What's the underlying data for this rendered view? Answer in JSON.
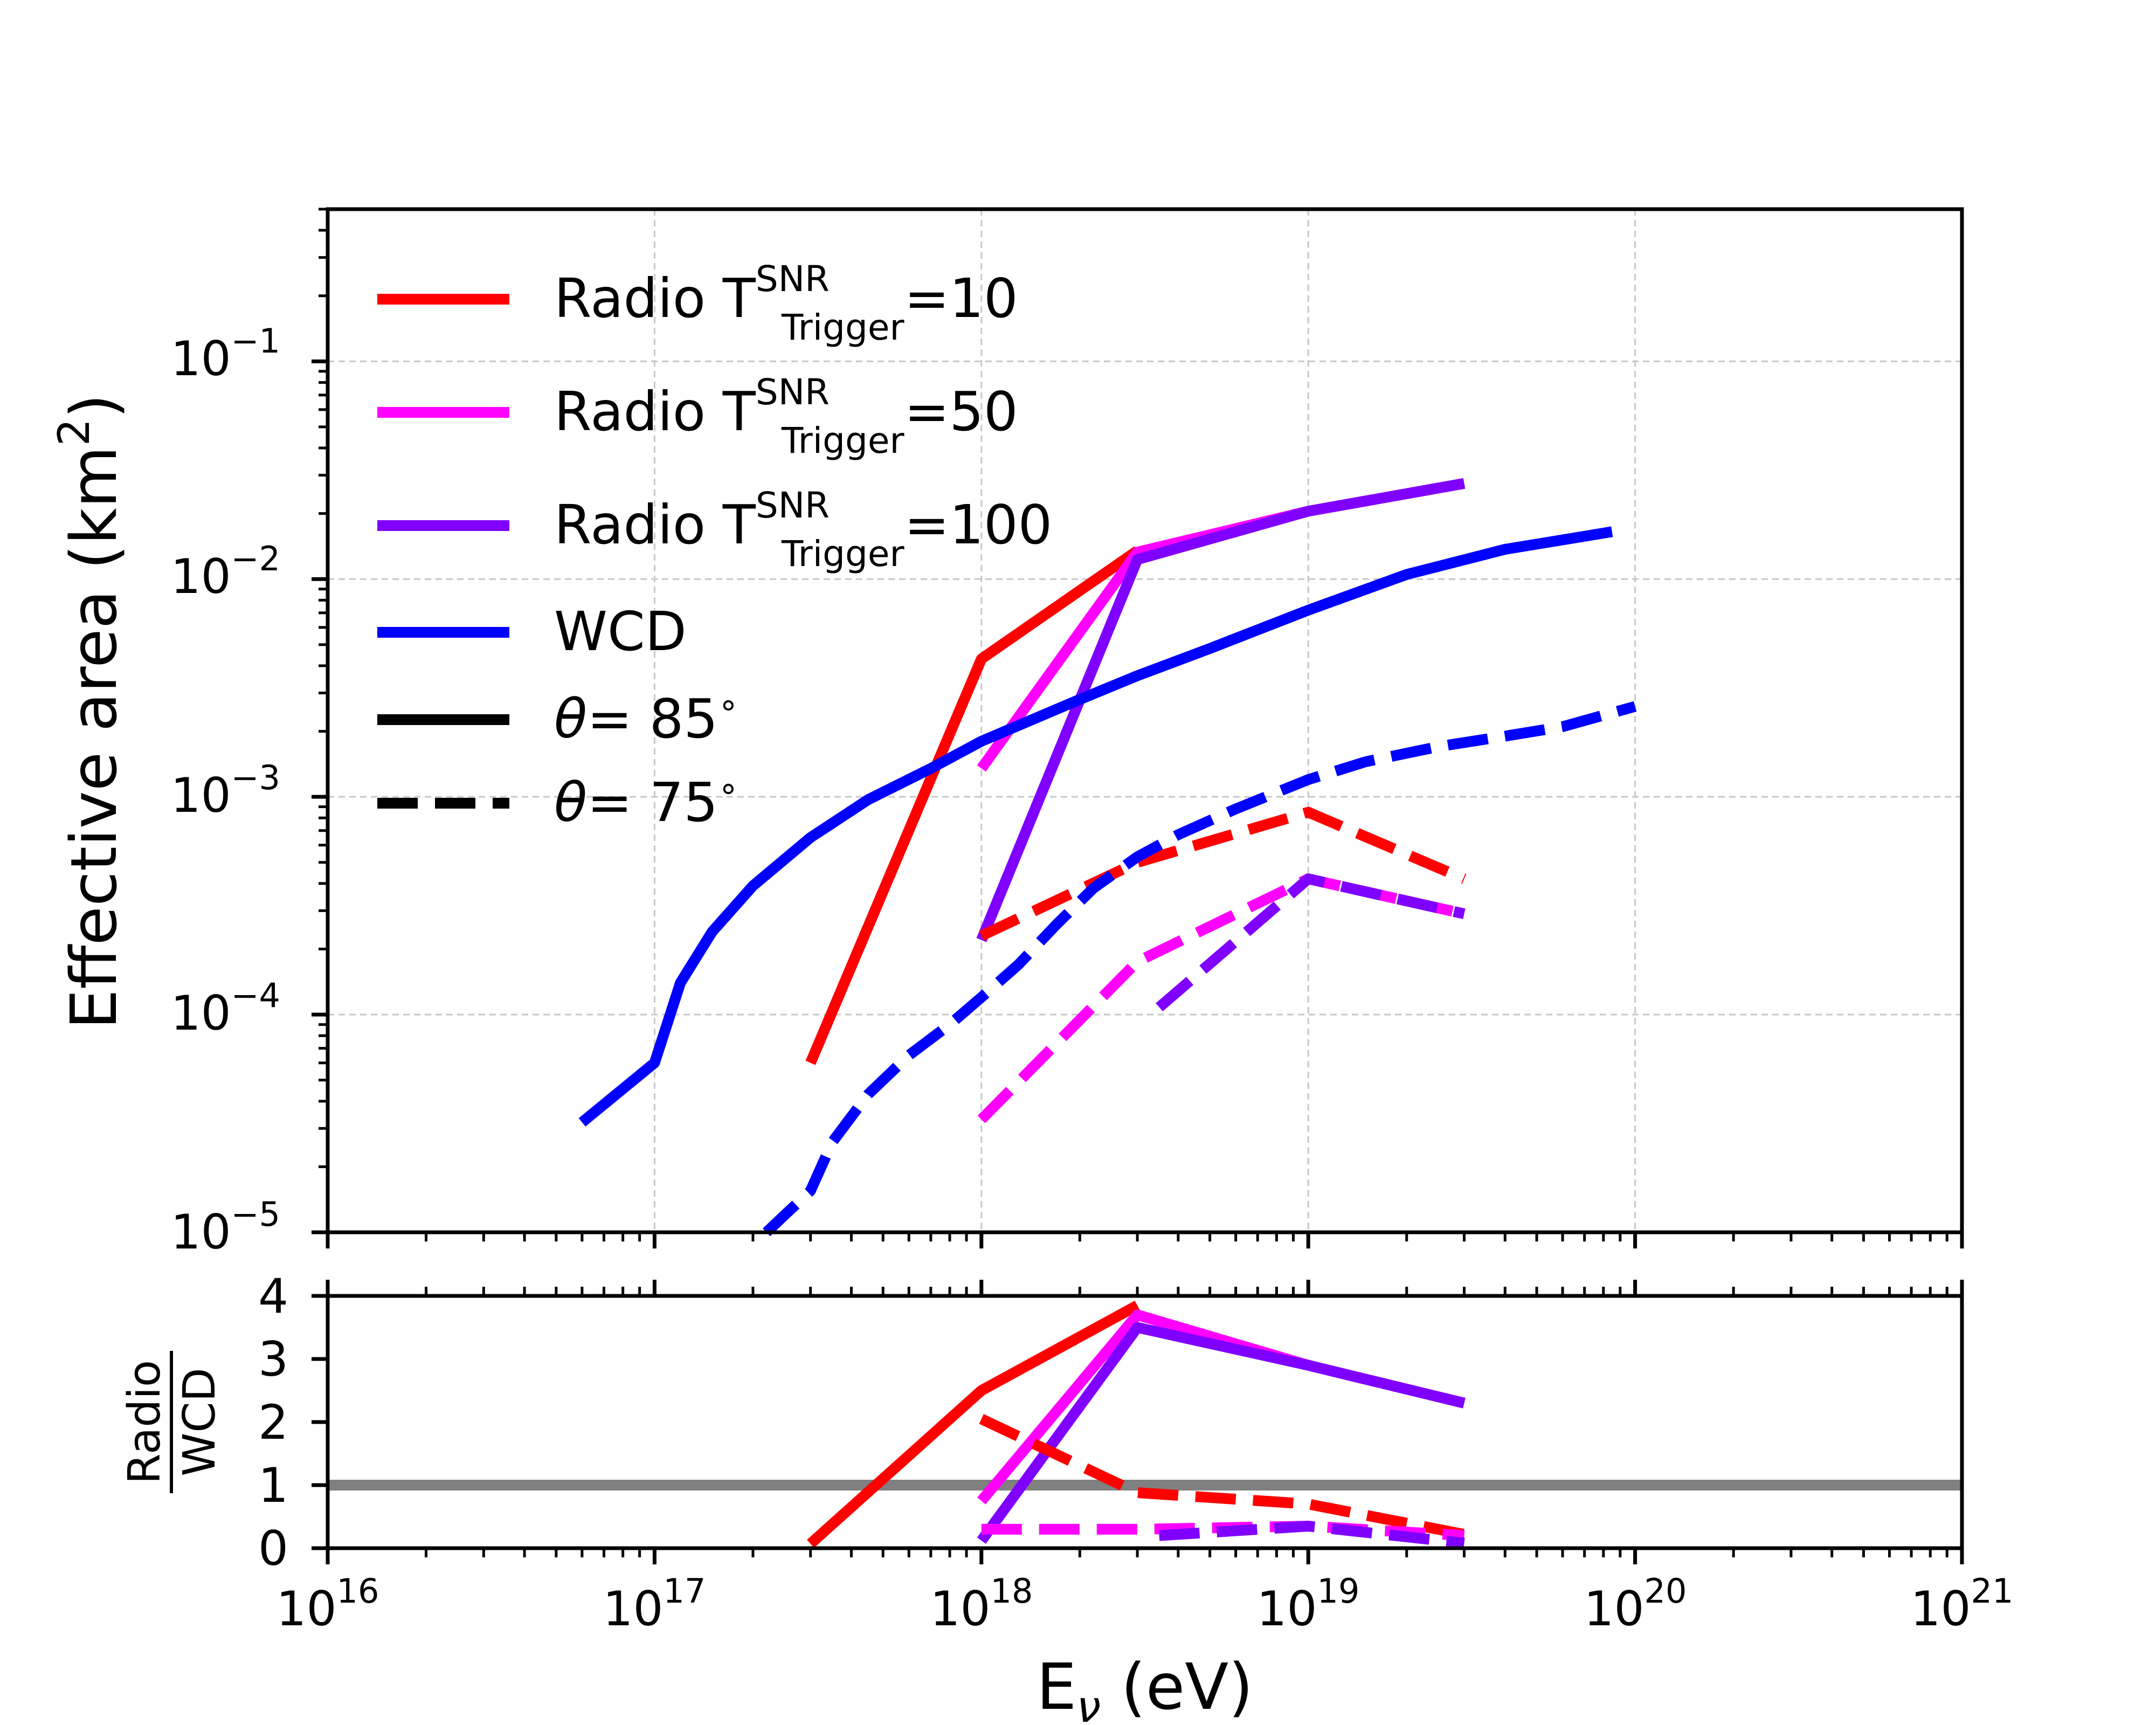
{
  "colors": {
    "red": "#ff0000",
    "magenta": "#ff00ff",
    "violet": "#8000ff",
    "blue": "#0000ff",
    "gray": "#808080",
    "black": "#000000"
  },
  "legend": {
    "t10_prefix": "Radio T",
    "t10_sup": "SNR",
    "t10_sub": "Trigger",
    "t10_value": "=10",
    "t50_prefix": "Radio T",
    "t50_sup": "SNR",
    "t50_sub": "Trigger",
    "t50_value": "=50",
    "t100_prefix": "Radio T",
    "t100_sup": "SNR",
    "t100_sub": "Trigger",
    "t100_value": "=100",
    "wcd": "WCD",
    "theta_symbol": "θ",
    "theta85": "= 85",
    "theta75": "= 75",
    "degree": "∘"
  },
  "chart_data": [
    {
      "type": "line",
      "panel": "top",
      "x_scale": "log",
      "y_scale": "log",
      "xlim": [
        1e+16,
        1e+21
      ],
      "ylim": [
        1e-05,
        0.5
      ],
      "ylabel_main": "Effective area (km",
      "ylabel_sup": "2",
      "ylabel_close": ")",
      "yticks": [
        {
          "mant": "10",
          "exp": "−5"
        },
        {
          "mant": "10",
          "exp": "−4"
        },
        {
          "mant": "10",
          "exp": "−3"
        },
        {
          "mant": "10",
          "exp": "−2"
        },
        {
          "mant": "10",
          "exp": "−1"
        }
      ],
      "grid": true,
      "series": [
        {
          "name": "Radio T=10, θ=85°",
          "color": "red",
          "dash": "solid",
          "x": [
            3e+17,
            1e+18,
            3e+18
          ],
          "y": [
            6e-05,
            0.0043,
            0.0135
          ]
        },
        {
          "name": "Radio T=50, θ=85°",
          "color": "magenta",
          "dash": "solid",
          "x": [
            1e+18,
            3e+18,
            1e+19,
            3e+19
          ],
          "y": [
            0.00135,
            0.0133,
            0.0205,
            0.0275
          ]
        },
        {
          "name": "Radio T=100, θ=85°",
          "color": "violet",
          "dash": "solid",
          "x": [
            1e+18,
            3e+18,
            1e+19,
            3e+19
          ],
          "y": [
            0.00022,
            0.0123,
            0.0205,
            0.0275
          ]
        },
        {
          "name": "WCD, θ=85°",
          "color": "blue",
          "dash": "solid",
          "x": [
            6e+16,
            1e+17,
            1.2e+17,
            1.5e+17,
            2e+17,
            3e+17,
            4.5e+17,
            7e+17,
            1e+18,
            2e+18,
            3e+18,
            5e+18,
            1e+19,
            2e+19,
            4e+19,
            8.5e+19
          ],
          "y": [
            3.2e-05,
            6e-05,
            0.00014,
            0.00024,
            0.00039,
            0.00065,
            0.00097,
            0.00135,
            0.0018,
            0.0028,
            0.0036,
            0.0048,
            0.0072,
            0.0105,
            0.0137,
            0.0165
          ]
        },
        {
          "name": "Radio T=10, θ=75°",
          "color": "red",
          "dash": "dashed",
          "x": [
            1e+18,
            3e+18,
            1e+19,
            3e+19
          ],
          "y": [
            0.00023,
            0.0005,
            0.00085,
            0.00042
          ]
        },
        {
          "name": "Radio T=50, θ=75°",
          "color": "magenta",
          "dash": "dashed",
          "x": [
            1e+18,
            3e+18,
            1e+19,
            3e+19
          ],
          "y": [
            3.3e-05,
            0.000175,
            0.00042,
            0.00029
          ]
        },
        {
          "name": "Radio T=100, θ=75°",
          "color": "violet",
          "dash": "dashed",
          "x": [
            3.5e+18,
            1e+19,
            3e+19
          ],
          "y": [
            0.000108,
            0.00042,
            0.00029
          ]
        },
        {
          "name": "WCD, θ=75°",
          "color": "blue",
          "dash": "dashed",
          "x": [
            2.2e+17,
            2.5e+17,
            3e+17,
            3.5e+17,
            4.5e+17,
            6e+17,
            8e+17,
            1e+18,
            1.3e+18,
            1.7e+18,
            2.2e+18,
            3e+18,
            4e+18,
            6e+18,
            1e+19,
            1.5e+19,
            2.5e+19,
            4e+19,
            6e+19,
            1e+20
          ],
          "y": [
            1e-05,
            1.2e-05,
            1.55e-05,
            2.6e-05,
            4.3e-05,
            6.5e-05,
            9e-05,
            0.00012,
            0.00017,
            0.00026,
            0.00038,
            0.00053,
            0.00067,
            0.00088,
            0.0012,
            0.00145,
            0.0017,
            0.0019,
            0.0021,
            0.0026
          ]
        }
      ]
    },
    {
      "type": "line",
      "panel": "bottom",
      "x_scale": "log",
      "y_scale": "linear",
      "xlim": [
        1e+16,
        1e+21
      ],
      "ylim": [
        0,
        4
      ],
      "yticks": [
        "0",
        "1",
        "2",
        "3",
        "4"
      ],
      "xticks": [
        {
          "mant": "10",
          "exp": "16"
        },
        {
          "mant": "10",
          "exp": "17"
        },
        {
          "mant": "10",
          "exp": "18"
        },
        {
          "mant": "10",
          "exp": "19"
        },
        {
          "mant": "10",
          "exp": "20"
        },
        {
          "mant": "10",
          "exp": "21"
        }
      ],
      "xlabel_main": "E",
      "xlabel_sub": "ν",
      "xlabel_rest": " (eV)",
      "ylabel_numerator": "Radio",
      "ylabel_denominator": "WCD",
      "reference_line": 1,
      "series": [
        {
          "name": "Radio T=10 / WCD, θ=85°",
          "color": "red",
          "dash": "solid",
          "x": [
            3e+17,
            1e+18,
            3e+18
          ],
          "y": [
            0.07,
            2.5,
            3.85
          ]
        },
        {
          "name": "Radio T=50 / WCD, θ=85°",
          "color": "magenta",
          "dash": "solid",
          "x": [
            1e+18,
            3e+18,
            1e+19,
            3e+19
          ],
          "y": [
            0.75,
            3.7,
            2.9,
            2.3
          ]
        },
        {
          "name": "Radio T=100 / WCD, θ=85°",
          "color": "violet",
          "dash": "solid",
          "x": [
            1e+18,
            3e+18,
            1e+19,
            3e+19
          ],
          "y": [
            0.12,
            3.5,
            2.9,
            2.3
          ]
        },
        {
          "name": "Radio T=10 / WCD, θ=75°",
          "color": "red",
          "dash": "dashed",
          "x": [
            1e+18,
            3e+18,
            1e+19,
            3e+19
          ],
          "y": [
            2.05,
            0.88,
            0.7,
            0.22
          ]
        },
        {
          "name": "Radio T=50 / WCD, θ=75°",
          "color": "magenta",
          "dash": "dashed",
          "x": [
            1e+18,
            3e+18,
            1e+19,
            3e+19
          ],
          "y": [
            0.3,
            0.3,
            0.35,
            0.2
          ]
        },
        {
          "name": "Radio T=100 / WCD, θ=75°",
          "color": "violet",
          "dash": "dashed",
          "x": [
            3.5e+18,
            1e+19,
            3e+19
          ],
          "y": [
            0.2,
            0.35,
            0.08
          ]
        }
      ]
    }
  ]
}
